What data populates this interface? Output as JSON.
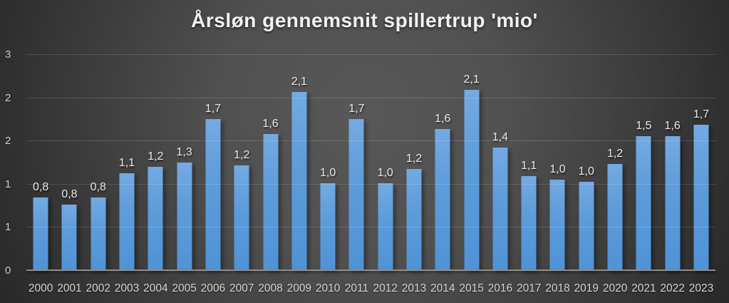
{
  "title": "Årsløn gennemsnit spillertrup 'mio'",
  "colors": {
    "bar_gradient_top": "#74aae3",
    "bar_gradient_bottom": "#4f93d6",
    "background_center": "#585858",
    "background_edge": "#262626",
    "gridline": "#6f6f6f",
    "baseline": "#8f8f8f",
    "title_text": "#f2f2f2",
    "axis_text": "#d4d4d4",
    "data_label_text": "#e9e9e9"
  },
  "chart_data": {
    "type": "bar",
    "title": "Årsløn gennemsnit spillertrup 'mio'",
    "xlabel": "",
    "ylabel": "",
    "categories": [
      "2000",
      "2001",
      "2002",
      "2003",
      "2004",
      "2005",
      "2006",
      "2007",
      "2008",
      "2009",
      "2010",
      "2011",
      "2012",
      "2013",
      "2014",
      "2015",
      "2016",
      "2017",
      "2018",
      "2019",
      "2020",
      "2021",
      "2022",
      "2023"
    ],
    "values": [
      0.8,
      0.8,
      0.8,
      1.1,
      1.2,
      1.3,
      1.7,
      1.2,
      1.6,
      2.1,
      1.0,
      1.7,
      1.0,
      1.2,
      1.6,
      2.1,
      1.4,
      1.1,
      1.0,
      1.0,
      1.2,
      1.5,
      1.6,
      1.7
    ],
    "value_labels": [
      "0,8",
      "0,8",
      "0,8",
      "1,1",
      "1,2",
      "1,3",
      "1,7",
      "1,2",
      "1,6",
      "2,1",
      "1,0",
      "1,7",
      "1,0",
      "1,2",
      "1,6",
      "2,1",
      "1,4",
      "1,1",
      "1,0",
      "1,0",
      "1,2",
      "1,5",
      "1,6",
      "1,7"
    ],
    "render_values": [
      0.84,
      0.76,
      0.84,
      1.12,
      1.2,
      1.25,
      1.75,
      1.21,
      1.58,
      2.06,
      1.01,
      1.75,
      1.01,
      1.17,
      1.63,
      2.09,
      1.42,
      1.09,
      1.05,
      1.02,
      1.23,
      1.55,
      1.55,
      1.68
    ],
    "ylim": [
      0,
      2.5
    ],
    "y_tick_values": [
      0,
      0.5,
      1.0,
      1.5,
      2.0,
      2.5
    ],
    "y_tick_labels": [
      "0",
      "1",
      "1",
      "2",
      "2",
      "3"
    ],
    "grid": "horizontal",
    "legend": "none",
    "decimal_separator": ","
  }
}
